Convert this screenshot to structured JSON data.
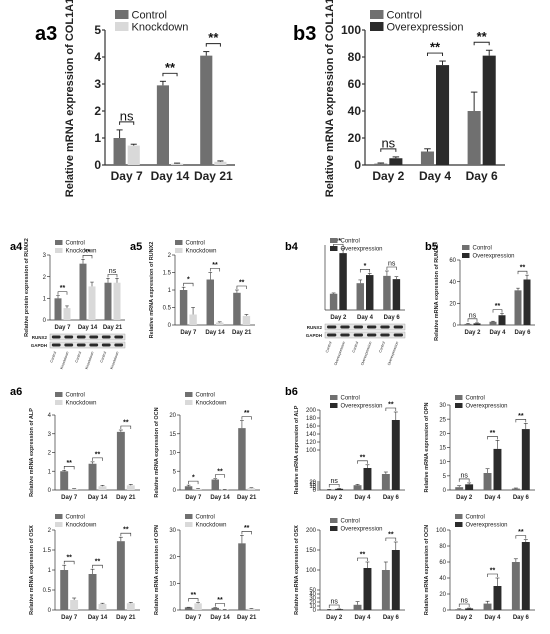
{
  "colors": {
    "control": "#707070",
    "knockdown": "#d9d9d9",
    "overexpression": "#2b2b2b",
    "axis": "#333333"
  },
  "chart_data": [
    {
      "id": "a3",
      "panel_label": "a3",
      "type": "bar",
      "title": "",
      "ylabel": "Relative mRNA expression of COL1A1",
      "ylim": [
        0,
        5
      ],
      "yticks": [
        0,
        1,
        2,
        3,
        4,
        5
      ],
      "categories": [
        "Day 7",
        "Day 14",
        "Day 21"
      ],
      "series": [
        {
          "name": "Control",
          "color": "control",
          "values": [
            1.0,
            2.95,
            4.05
          ],
          "errors": [
            0.3,
            0.15,
            0.15
          ]
        },
        {
          "name": "Knockdown",
          "color": "knockdown",
          "values": [
            0.72,
            0.05,
            0.12
          ],
          "errors": [
            0.05,
            0.02,
            0.03
          ]
        }
      ],
      "sig": [
        "ns",
        "**",
        "**"
      ]
    },
    {
      "id": "b3",
      "panel_label": "b3",
      "type": "bar",
      "title": "",
      "ylabel": "Relative mRNA expression of COL1A1",
      "ylim": [
        0,
        100
      ],
      "yticks": [
        0,
        20,
        40,
        60,
        80,
        100
      ],
      "categories": [
        "Day 2",
        "Day 4",
        "Day 6"
      ],
      "series": [
        {
          "name": "Control",
          "color": "control",
          "values": [
            1,
            10,
            40
          ],
          "errors": [
            0.5,
            2,
            14
          ]
        },
        {
          "name": "Overexpression",
          "color": "overexpression",
          "values": [
            5,
            74,
            81
          ],
          "errors": [
            1,
            3,
            4
          ]
        }
      ],
      "sig": [
        "ns",
        "**",
        "**"
      ]
    },
    {
      "id": "a4",
      "panel_label": "a4",
      "type": "bar",
      "title": "",
      "ylabel": "Relative protein expression of RUNX2",
      "ylim": [
        0,
        3
      ],
      "yticks": [
        0,
        1,
        2,
        3
      ],
      "categories": [
        "Day 7",
        "Day 14",
        "Day 21"
      ],
      "series": [
        {
          "name": "Control",
          "color": "control",
          "values": [
            1.0,
            2.6,
            1.72
          ],
          "errors": [
            0.12,
            0.2,
            0.2
          ]
        },
        {
          "name": "Knockdown",
          "color": "knockdown",
          "values": [
            0.55,
            1.55,
            1.72
          ],
          "errors": [
            0.1,
            0.2,
            0.2
          ]
        }
      ],
      "sig": [
        "**",
        "**",
        "ns"
      ],
      "blot": {
        "rows": [
          "RUNX2",
          "GAPDH"
        ],
        "lanes": [
          "Control",
          "Knockdown",
          "Control",
          "Knockdown",
          "Control",
          "Knockdown"
        ]
      }
    },
    {
      "id": "a5",
      "panel_label": "a5",
      "type": "bar",
      "title": "",
      "ylabel": "Relative mRNA expression of RUNX2",
      "ylim": [
        0,
        2.0
      ],
      "yticks": [
        0,
        0.5,
        1.0,
        1.5,
        2.0
      ],
      "categories": [
        "Day 7",
        "Day 14",
        "Day 21"
      ],
      "series": [
        {
          "name": "Control",
          "color": "control",
          "values": [
            1.0,
            1.3,
            0.92
          ],
          "errors": [
            0.08,
            0.2,
            0.08
          ]
        },
        {
          "name": "Knockdown",
          "color": "knockdown",
          "values": [
            0.3,
            0.07,
            0.26
          ],
          "errors": [
            0.2,
            0.02,
            0.04
          ]
        }
      ],
      "sig": [
        "*",
        "**",
        "**"
      ]
    },
    {
      "id": "b4",
      "panel_label": "b4",
      "type": "bar",
      "title": "",
      "ylabel": "",
      "ylim": [
        0,
        4
      ],
      "yticks": [],
      "categories": [
        "Day 2",
        "Day 4",
        "Day 6"
      ],
      "series": [
        {
          "name": "Control",
          "color": "control",
          "values": [
            1.0,
            1.65,
            2.1
          ],
          "errors": [
            0.05,
            0.2,
            0.3
          ]
        },
        {
          "name": "Overexpression",
          "color": "overexpression",
          "values": [
            3.5,
            2.15,
            1.9
          ],
          "errors": [
            0.3,
            0.1,
            0.15
          ]
        }
      ],
      "sig": [
        "**",
        "*",
        "ns"
      ],
      "blot": {
        "rows": [
          "RUNX2",
          "GAPDH"
        ],
        "lanes": [
          "Control",
          "Overexpression",
          "Control",
          "Overexpression",
          "Control",
          "Overexpression"
        ]
      }
    },
    {
      "id": "b5",
      "panel_label": "b5",
      "type": "bar",
      "title": "",
      "ylabel": "Relative mRNA expression of RUNX2",
      "ylim": [
        0,
        60
      ],
      "yticks": [
        0,
        20,
        40,
        60
      ],
      "categories": [
        "Day 2",
        "Day 4",
        "Day 6"
      ],
      "series": [
        {
          "name": "Control",
          "color": "control",
          "values": [
            1,
            3,
            32
          ],
          "errors": [
            0.5,
            0.5,
            2
          ]
        },
        {
          "name": "Overexpression",
          "color": "overexpression",
          "values": [
            1.5,
            9,
            42
          ],
          "errors": [
            0.5,
            1.5,
            4
          ]
        }
      ],
      "sig": [
        "ns",
        "**",
        "**"
      ]
    },
    {
      "id": "a6_alp",
      "panel_label": "a6",
      "type": "bar",
      "title": "",
      "ylabel": "Relative mRNA expression of ALP",
      "ylim": [
        0,
        4
      ],
      "yticks": [
        0,
        1,
        2,
        3,
        4
      ],
      "categories": [
        "Day 7",
        "Day 14",
        "Day 21"
      ],
      "series": [
        {
          "name": "Control",
          "color": "control",
          "values": [
            1.0,
            1.4,
            3.1
          ],
          "errors": [
            0.05,
            0.1,
            0.1
          ]
        },
        {
          "name": "Knockdown",
          "color": "knockdown",
          "values": [
            0.05,
            0.2,
            0.25
          ],
          "errors": [
            0.02,
            0.05,
            0.05
          ]
        }
      ],
      "sig": [
        "**",
        "**",
        "**"
      ]
    },
    {
      "id": "a6_ocn",
      "panel_label": "",
      "type": "bar",
      "title": "",
      "ylabel": "Relative mRNA expression of OCN",
      "ylim": [
        0,
        20
      ],
      "yticks": [
        0,
        5,
        10,
        15,
        20
      ],
      "categories": [
        "Day 7",
        "Day 14",
        "Day 21"
      ],
      "series": [
        {
          "name": "Control",
          "color": "control",
          "values": [
            1.0,
            2.8,
            16.5
          ],
          "errors": [
            0.3,
            0.2,
            2
          ]
        },
        {
          "name": "Knockdown",
          "color": "knockdown",
          "values": [
            0.3,
            0.1,
            0.5
          ],
          "errors": [
            0.1,
            0.05,
            0.1
          ]
        }
      ],
      "sig": [
        "*",
        "**",
        "**"
      ]
    },
    {
      "id": "b6_alp",
      "panel_label": "b6",
      "type": "bar",
      "title": "",
      "ylabel": "Relative mRNA expression of ALP",
      "ylim": [
        0,
        200
      ],
      "yticks": [
        0,
        5,
        10,
        15,
        20,
        100,
        120,
        140,
        160,
        180,
        200
      ],
      "categories": [
        "Day 2",
        "Day 4",
        "Day 6"
      ],
      "series": [
        {
          "name": "Control",
          "color": "control",
          "values": [
            1,
            12,
            40
          ],
          "errors": [
            0.5,
            2,
            5
          ]
        },
        {
          "name": "Overexpression",
          "color": "overexpression",
          "values": [
            3,
            55,
            175
          ],
          "errors": [
            1,
            8,
            20
          ]
        }
      ],
      "sig": [
        "ns",
        "**",
        "**"
      ]
    },
    {
      "id": "b6_opn",
      "panel_label": "",
      "type": "bar",
      "title": "",
      "ylabel": "Relative mRNA expression of OPN",
      "ylim": [
        0,
        30
      ],
      "yticks": [
        0,
        5,
        10,
        15,
        20,
        25,
        30
      ],
      "categories": [
        "Day 2",
        "Day 4",
        "Day 6"
      ],
      "series": [
        {
          "name": "Control",
          "color": "control",
          "values": [
            1,
            6,
            0.5
          ],
          "errors": [
            0.5,
            1.5,
            0.2
          ]
        },
        {
          "name": "Overexpression",
          "color": "overexpression",
          "values": [
            2,
            14.5,
            21.5
          ],
          "errors": [
            0.5,
            3,
            2
          ]
        }
      ],
      "sig": [
        "ns",
        "**",
        "**"
      ]
    },
    {
      "id": "a6_osx",
      "panel_label": "",
      "type": "bar",
      "title": "",
      "ylabel": "Relative mRNA expression of OSX",
      "ylim": [
        0,
        2.0
      ],
      "yticks": [
        0,
        0.5,
        1.0,
        1.5,
        2.0
      ],
      "categories": [
        "Day 7",
        "Day 14",
        "Day 21"
      ],
      "series": [
        {
          "name": "Control",
          "color": "control",
          "values": [
            1.0,
            0.9,
            1.72
          ],
          "errors": [
            0.12,
            0.12,
            0.1
          ]
        },
        {
          "name": "Knockdown",
          "color": "knockdown",
          "values": [
            0.25,
            0.15,
            0.17
          ],
          "errors": [
            0.05,
            0.02,
            0.02
          ]
        }
      ],
      "sig": [
        "**",
        "**",
        "**"
      ]
    },
    {
      "id": "a6_opn",
      "panel_label": "",
      "type": "bar",
      "title": "",
      "ylabel": "Relative mRNA expression of OPN",
      "ylim": [
        0,
        30
      ],
      "yticks": [
        0,
        10,
        20,
        30
      ],
      "categories": [
        "Day 7",
        "Day 14",
        "Day 21"
      ],
      "series": [
        {
          "name": "Control",
          "color": "control",
          "values": [
            1.0,
            0.8,
            25
          ],
          "errors": [
            0.05,
            0.1,
            3
          ]
        },
        {
          "name": "Knockdown",
          "color": "knockdown",
          "values": [
            2.5,
            0.2,
            0.5
          ],
          "errors": [
            0.3,
            0.05,
            0.1
          ]
        }
      ],
      "sig": [
        "**",
        "**",
        "**"
      ]
    },
    {
      "id": "b6_osx",
      "panel_label": "",
      "type": "bar",
      "title": "",
      "ylabel": "Relative mRNA expression of OSX",
      "ylim": [
        0,
        200
      ],
      "yticks": [
        0,
        10,
        20,
        30,
        40,
        50,
        100,
        150,
        200
      ],
      "categories": [
        "Day 2",
        "Day 4",
        "Day 6"
      ],
      "series": [
        {
          "name": "Control",
          "color": "control",
          "values": [
            1,
            13,
            100
          ],
          "errors": [
            0.5,
            8,
            20
          ]
        },
        {
          "name": "Overexpression",
          "color": "overexpression",
          "values": [
            2,
            105,
            150
          ],
          "errors": [
            0.5,
            15,
            20
          ]
        }
      ],
      "sig": [
        "ns",
        "**",
        "**"
      ]
    },
    {
      "id": "b6_ocn",
      "panel_label": "",
      "type": "bar",
      "title": "",
      "ylabel": "Relative mRNA expression of OCN",
      "ylim": [
        0,
        100
      ],
      "yticks": [
        0,
        20,
        40,
        60,
        80,
        100
      ],
      "categories": [
        "Day 2",
        "Day 4",
        "Day 6"
      ],
      "series": [
        {
          "name": "Control",
          "color": "control",
          "values": [
            1,
            8,
            60
          ],
          "errors": [
            0.5,
            3,
            4
          ]
        },
        {
          "name": "Overexpression",
          "color": "overexpression",
          "values": [
            2,
            30,
            85
          ],
          "errors": [
            0.5,
            10,
            3
          ]
        }
      ],
      "sig": [
        "ns",
        "**",
        "**"
      ]
    }
  ]
}
